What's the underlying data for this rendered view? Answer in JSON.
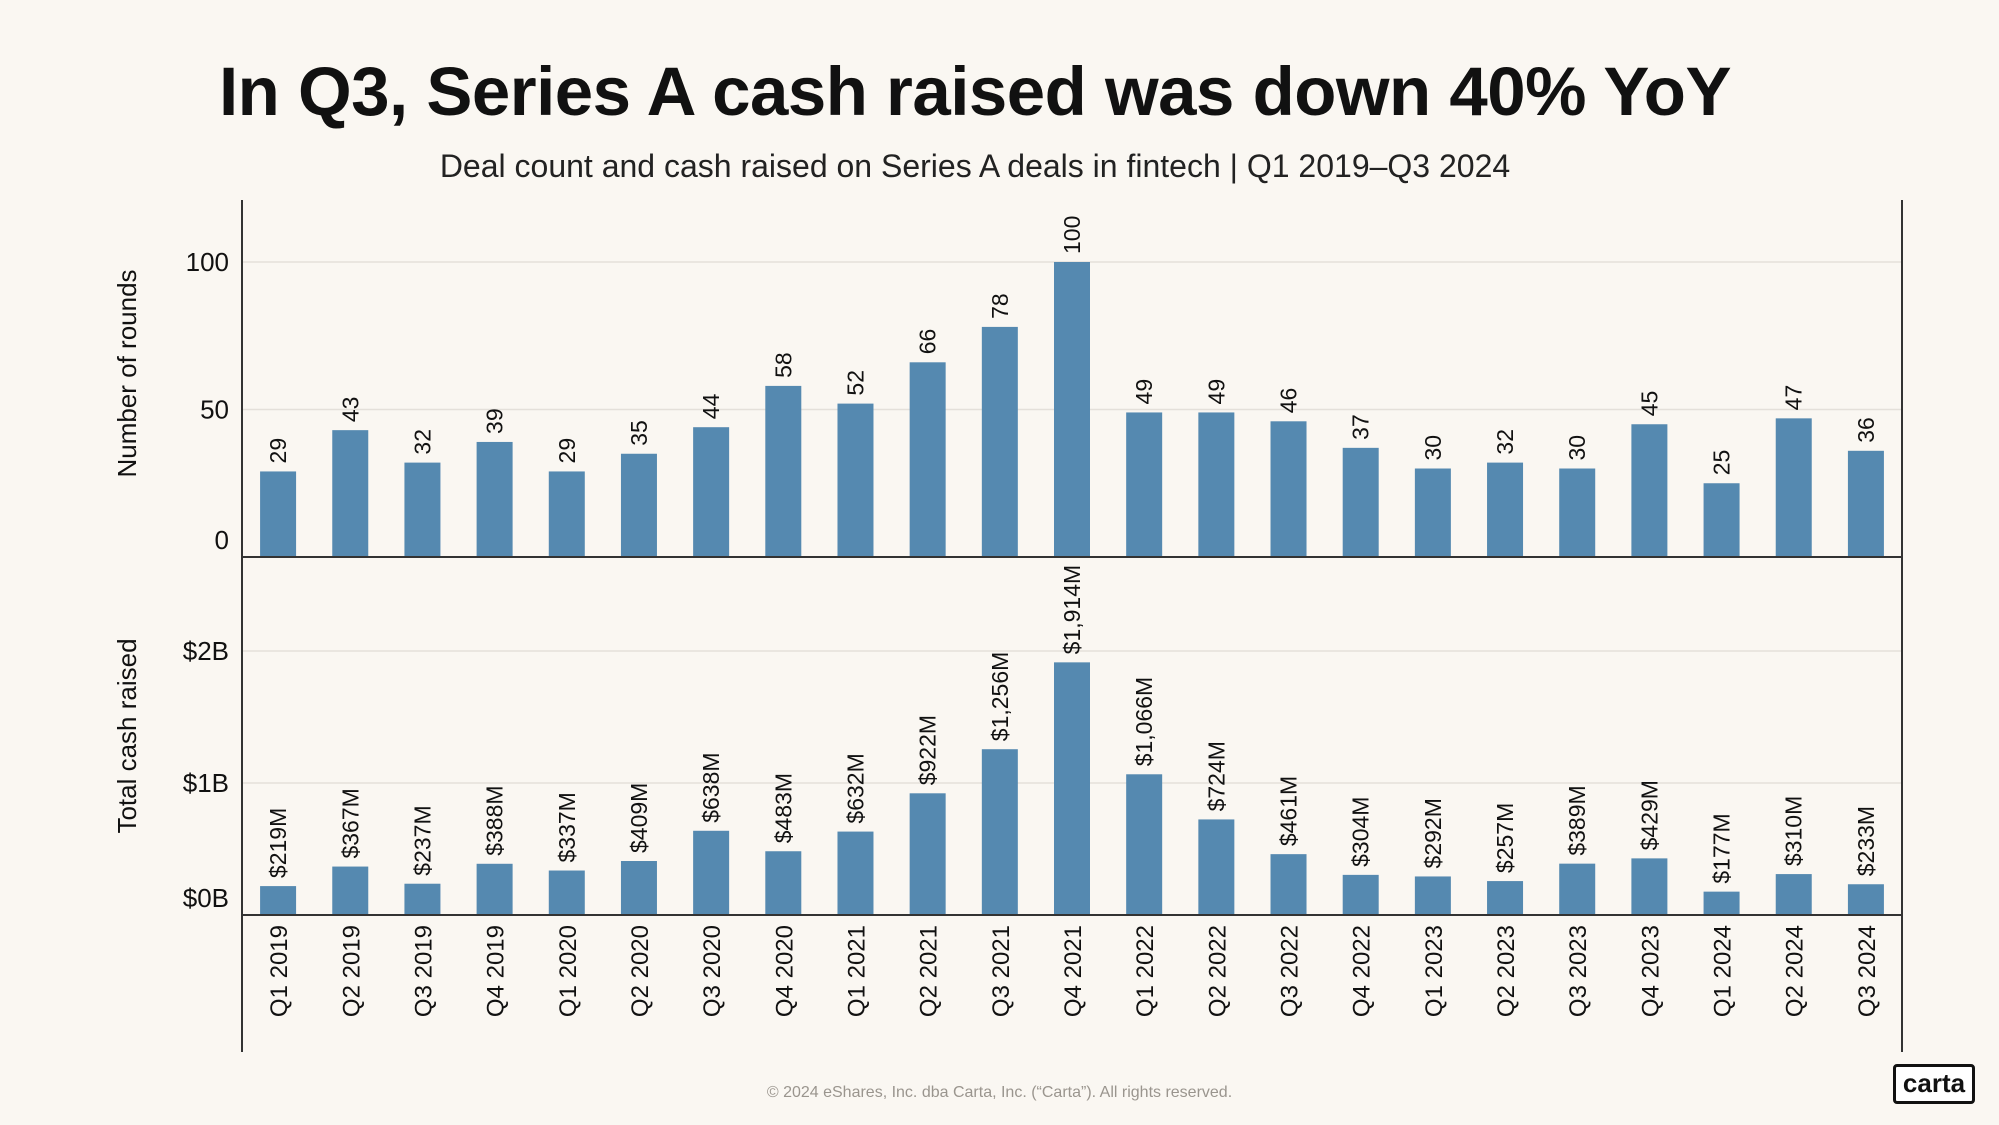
{
  "title": "In Q3, Series A cash raised was down 40% YoY",
  "subtitle": "Deal count and cash raised on Series A deals in fintech | Q1 2019–Q3 2024",
  "footer": "© 2024 eShares, Inc. dba Carta, Inc. (“Carta”). All rights reserved.",
  "logo": "carta",
  "colors": {
    "bar": "#5589b0",
    "background": "#faf7f2",
    "grid": "#e4e0da",
    "axis": "#333333"
  },
  "chart_data": [
    {
      "type": "bar",
      "ylabel": "Number of rounds",
      "ylim": [
        0,
        120
      ],
      "yticks": [
        0,
        50,
        100
      ],
      "ytick_labels": [
        "0",
        "50",
        "100"
      ],
      "grid": true,
      "categories": [
        "Q1 2019",
        "Q2 2019",
        "Q3 2019",
        "Q4 2019",
        "Q1 2020",
        "Q2 2020",
        "Q3 2020",
        "Q4 2020",
        "Q1 2021",
        "Q2 2021",
        "Q3 2021",
        "Q4 2021",
        "Q1 2022",
        "Q2 2022",
        "Q3 2022",
        "Q4 2022",
        "Q1 2023",
        "Q2 2023",
        "Q3 2023",
        "Q4 2023",
        "Q1 2024",
        "Q2 2024",
        "Q3 2024"
      ],
      "values": [
        29,
        43,
        32,
        39,
        29,
        35,
        44,
        58,
        52,
        66,
        78,
        100,
        49,
        49,
        46,
        37,
        30,
        32,
        30,
        45,
        25,
        47,
        36
      ],
      "data_labels": [
        "29",
        "43",
        "32",
        "39",
        "29",
        "35",
        "44",
        "58",
        "52",
        "66",
        "78",
        "100",
        "49",
        "49",
        "46",
        "37",
        "30",
        "32",
        "30",
        "45",
        "25",
        "47",
        "36"
      ]
    },
    {
      "type": "bar",
      "ylabel": "Total cash raised",
      "ylim": [
        0,
        2.6
      ],
      "yticks": [
        0,
        1,
        2
      ],
      "ytick_labels": [
        "$0B",
        "$1B",
        "$2B"
      ],
      "grid": true,
      "categories": [
        "Q1 2019",
        "Q2 2019",
        "Q3 2019",
        "Q4 2019",
        "Q1 2020",
        "Q2 2020",
        "Q3 2020",
        "Q4 2020",
        "Q1 2021",
        "Q2 2021",
        "Q3 2021",
        "Q4 2021",
        "Q1 2022",
        "Q2 2022",
        "Q3 2022",
        "Q4 2022",
        "Q1 2023",
        "Q2 2023",
        "Q3 2023",
        "Q4 2023",
        "Q1 2024",
        "Q2 2024",
        "Q3 2024"
      ],
      "values": [
        0.219,
        0.367,
        0.237,
        0.388,
        0.337,
        0.409,
        0.638,
        0.483,
        0.632,
        0.922,
        1.256,
        1.914,
        1.066,
        0.724,
        0.461,
        0.304,
        0.292,
        0.257,
        0.389,
        0.429,
        0.177,
        0.31,
        0.233
      ],
      "data_labels": [
        "$219M",
        "$367M",
        "$237M",
        "$388M",
        "$337M",
        "$409M",
        "$638M",
        "$483M",
        "$632M",
        "$922M",
        "$1,256M",
        "$1,914M",
        "$1,066M",
        "$724M",
        "$461M",
        "$304M",
        "$292M",
        "$257M",
        "$389M",
        "$429M",
        "$177M",
        "$310M",
        "$233M"
      ]
    }
  ]
}
